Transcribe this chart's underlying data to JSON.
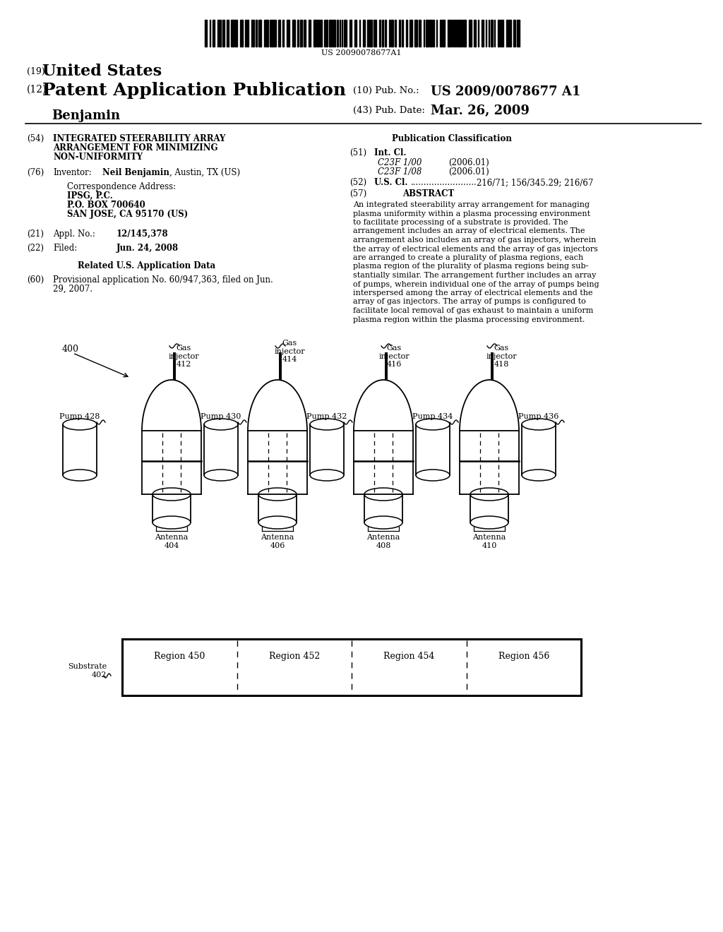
{
  "bg_color": "#ffffff",
  "barcode_text": "US 20090078677A1",
  "patent_number": "United States",
  "patent_number_prefix": "(19)",
  "app_type": "Patent Application Publication",
  "app_type_prefix": "(12)",
  "inventor_last": "Benjamin",
  "pub_no_label": "(10) Pub. No.:",
  "pub_no": "US 2009/0078677 A1",
  "pub_date_label": "(43) Pub. Date:",
  "pub_date": "Mar. 26, 2009",
  "title_num": "(54)",
  "title_line1": "INTEGRATED STEERABILITY ARRAY",
  "title_line2": "ARRANGEMENT FOR MINIMIZING",
  "title_line3": "NON-UNIFORMITY",
  "inventor_num": "(76)",
  "inventor_label": "Inventor:",
  "inventor_name": "Neil Benjamin",
  "inventor_addr": ", Austin, TX (US)",
  "corr_line1": "Correspondence Address:",
  "corr_line2": "IPSG, P.C.",
  "corr_line3": "P.O. BOX 700640",
  "corr_line4": "SAN JOSE, CA 95170 (US)",
  "appl_num": "(21)",
  "appl_label": "Appl. No.:",
  "appl_no": "12/145,378",
  "filed_num": "(22)",
  "filed_label": "Filed:",
  "filed_date": "Jun. 24, 2008",
  "related_header": "Related U.S. Application Data",
  "related_60": "(60)",
  "related_text": "Provisional application No. 60/947,363, filed on Jun.\n29, 2007.",
  "pub_class_header": "Publication Classification",
  "intcl_num": "(51)",
  "intcl_label": "Int. Cl.",
  "intcl_1": "C23F 1/00",
  "intcl_1_date": "(2006.01)",
  "intcl_2": "C23F 1/08",
  "intcl_2_date": "(2006.01)",
  "uscl_num": "(52)",
  "uscl_label": "U.S. Cl.",
  "uscl_dots": ".........................",
  "uscl_val": "216/71; 156/345.29; 216/67",
  "abstract_num": "(57)",
  "abstract_header": "ABSTRACT",
  "abstract_line1": "An integrated steerability array arrangement for managing",
  "abstract_line2": "plasma uniformity within a plasma processing environment",
  "abstract_line3": "to facilitate processing of a substrate is provided. The",
  "abstract_line4": "arrangement includes an array of electrical elements. The",
  "abstract_line5": "arrangement also includes an array of gas injectors, wherein",
  "abstract_line6": "the array of electrical elements and the array of gas injectors",
  "abstract_line7": "are arranged to create a plurality of plasma regions, each",
  "abstract_line8": "plasma region of the plurality of plasma regions being sub-",
  "abstract_line9": "stantially similar. The arrangement further includes an array",
  "abstract_line10": "of pumps, wherein individual one of the array of pumps being",
  "abstract_line11": "interspersed among the array of electrical elements and the",
  "abstract_line12": "array of gas injectors. The array of pumps is configured to",
  "abstract_line13": "facilitate local removal of gas exhaust to maintain a uniform",
  "abstract_line14": "plasma region within the plasma processing environment.",
  "diagram_label": "400",
  "antenna_labels": [
    "Antenna\n404",
    "Antenna\n406",
    "Antenna\n408",
    "Antenna\n410"
  ],
  "gas_injector_labels": [
    "Gas\ninjector\n412",
    "Gas\ninjector\n414",
    "Gas\ninjector\n416",
    "Gas\ninjector\n418"
  ],
  "pump_labels": [
    "Pump 428",
    "Pump 430",
    "Pump 432",
    "Pump 434",
    "Pump 436"
  ],
  "region_labels": [
    "Region 450",
    "Region 452",
    "Region 454",
    "Region 456"
  ],
  "substrate_label": "Substrate\n402"
}
